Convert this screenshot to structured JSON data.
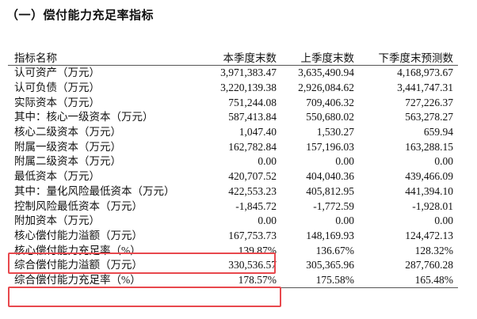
{
  "title": "（一）偿付能力充足率指标",
  "highlight_color": "#e8484d",
  "table": {
    "headers": [
      "指标名称",
      "本季度末数",
      "上季度末数",
      "下季度末预测数"
    ],
    "rows": [
      [
        "认可资产（万元）",
        "3,971,383.47",
        "3,635,490.94",
        "4,168,973.67"
      ],
      [
        "认可负债（万元）",
        "3,220,139.38",
        "2,926,084.62",
        "3,441,747.31"
      ],
      [
        "实际资本（万元）",
        "751,244.08",
        "709,406.32",
        "727,226.37"
      ],
      [
        "其中：核心一级资本（万元）",
        "587,413.84",
        "550,680.02",
        "563,278.27"
      ],
      [
        "核心二级资本（万元）",
        "1,047.40",
        "1,530.27",
        "659.94"
      ],
      [
        "附属一级资本（万元）",
        "162,782.84",
        "157,196.03",
        "163,288.15"
      ],
      [
        "附属二级资本（万元）",
        "0.00",
        "0.00",
        "0.00"
      ],
      [
        "最低资本（万元）",
        "420,707.52",
        "404,040.36",
        "439,466.09"
      ],
      [
        "其中：量化风险最低资本（万元）",
        "422,553.23",
        "405,812.95",
        "441,394.10"
      ],
      [
        "控制风险最低资本（万元）",
        "-1,845.72",
        "-1,772.59",
        "-1,928.01"
      ],
      [
        "附加资本（万元）",
        "0.00",
        "0.00",
        "0.00"
      ],
      [
        "核心偿付能力溢额（万元）",
        "167,753.73",
        "148,169.93",
        "124,472.13"
      ],
      [
        "核心偿付能力充足率（%）",
        "139.87%",
        "136.67%",
        "128.32%"
      ],
      [
        "综合偿付能力溢额（万元）",
        "330,536.57",
        "305,365.96",
        "287,760.28"
      ],
      [
        "综合偿付能力充足率（%）",
        "178.57%",
        "175.58%",
        "165.48%"
      ]
    ]
  }
}
